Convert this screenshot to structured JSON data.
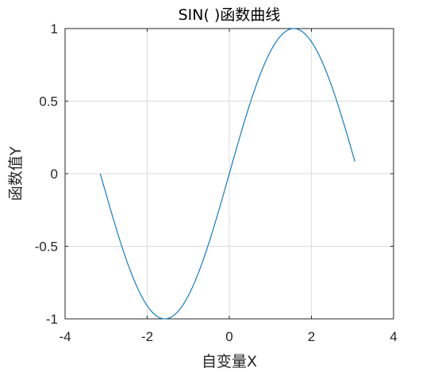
{
  "chart_data": {
    "type": "line",
    "title": "SIN( )函数曲线",
    "xlabel": "自变量X",
    "ylabel": "函数值Y",
    "xlim": [
      -4,
      4
    ],
    "ylim": [
      -1,
      1
    ],
    "xticks": [
      -4,
      -2,
      0,
      2,
      4
    ],
    "xtick_labels": [
      "-4",
      "-2",
      "0",
      "2",
      "4"
    ],
    "yticks": [
      -1,
      -0.5,
      0,
      0.5,
      1
    ],
    "ytick_labels": [
      "-1",
      "-0.5",
      "0",
      "0.5",
      "1"
    ],
    "grid": true,
    "legend": "none",
    "series": [
      {
        "function": "sin(x)",
        "color": "#0072BD",
        "x": [
          -3.1416,
          -2.9416,
          -2.7416,
          -2.5416,
          -2.3416,
          -2.1416,
          -1.9416,
          -1.7416,
          -1.5416,
          -1.3416,
          -1.1416,
          -0.9416,
          -0.7416,
          -0.5416,
          -0.3416,
          -0.1416,
          0.0584,
          0.2584,
          0.4584,
          0.6584,
          0.8584,
          1.0584,
          1.2584,
          1.4584,
          1.6584,
          1.8584,
          2.0584,
          2.2584,
          2.4584,
          2.6584,
          2.8584,
          3.0584
        ],
        "y": [
          0.0,
          -0.1987,
          -0.3894,
          -0.5646,
          -0.7174,
          -0.8415,
          -0.932,
          -0.9854,
          -0.9996,
          -0.9738,
          -0.9093,
          -0.8085,
          -0.6755,
          -0.5155,
          -0.335,
          -0.1411,
          0.0584,
          0.2555,
          0.4425,
          0.6116,
          0.7568,
          0.8719,
          0.9516,
          0.9937,
          0.996,
          0.9587,
          0.8834,
          0.7729,
          0.6322,
          0.467,
          0.28,
          0.0831
        ]
      }
    ]
  }
}
